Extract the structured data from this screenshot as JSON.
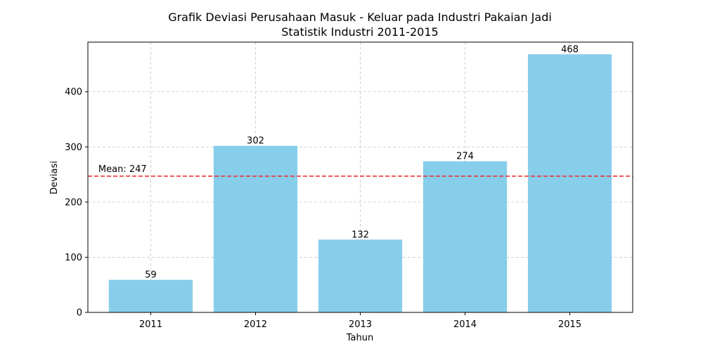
{
  "chart_data": {
    "type": "bar",
    "title": "Grafik Deviasi Perusahaan Masuk - Keluar pada Industri Pakaian Jadi",
    "subtitle": "Statistik Industri 2011-2015",
    "xlabel": "Tahun",
    "ylabel": "Deviasi",
    "categories": [
      "2011",
      "2012",
      "2013",
      "2014",
      "2015"
    ],
    "values": [
      59,
      302,
      132,
      274,
      468
    ],
    "ylim": [
      0,
      490
    ],
    "yticks": [
      0,
      100,
      200,
      300,
      400
    ],
    "grid": true,
    "bar_color": "#87CEEB",
    "mean": {
      "value": 247,
      "label": "Mean: 247",
      "color": "#EE3333"
    }
  }
}
